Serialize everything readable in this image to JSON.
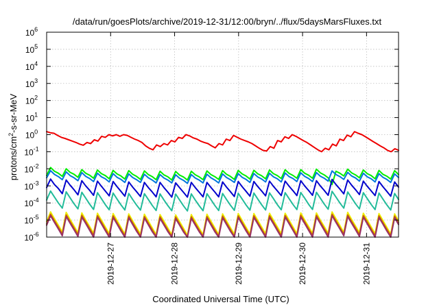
{
  "chart_data": {
    "type": "line",
    "title": "/data/run/goesPlots/archive/2019-12-31/12:00/bryn/../flux/5daysMarsFluxes.txt",
    "xlabel": "Coordinated Universal Time (UTC)",
    "ylabel": {
      "base": "protons/cm",
      "sup": "2",
      "rest": "-s-sr-MeV"
    },
    "x_ticks": [
      "2019-12-27",
      "2019-12-28",
      "2019-12-29",
      "2019-12-30",
      "2019-12-31"
    ],
    "y_ticks": [
      {
        "base": "10",
        "exp": "-6"
      },
      {
        "base": "10",
        "exp": "-5"
      },
      {
        "base": "10",
        "exp": "-4"
      },
      {
        "base": "10",
        "exp": "-3"
      },
      {
        "base": "10",
        "exp": "-2"
      },
      {
        "base": "10",
        "exp": "-1"
      },
      {
        "base": "10",
        "exp": "0"
      },
      {
        "base": "10",
        "exp": "1"
      },
      {
        "base": "10",
        "exp": "2"
      },
      {
        "base": "10",
        "exp": "3"
      },
      {
        "base": "10",
        "exp": "4"
      },
      {
        "base": "10",
        "exp": "5"
      },
      {
        "base": "10",
        "exp": "6"
      }
    ],
    "y_scale": "log",
    "ylim": [
      1e-06,
      1000000.0
    ],
    "xlim": [
      "2019-12-26 00:00",
      "2019-12-31 12:00"
    ],
    "grid": true,
    "legend": "none",
    "series": [
      {
        "color": "#ee0000",
        "period_hours": 4,
        "y": [
          1.5,
          1.3,
          1.2,
          0.9,
          0.7,
          0.6,
          0.5,
          0.42,
          0.35,
          0.28,
          0.24,
          0.35,
          0.3,
          0.5,
          0.42,
          0.8,
          0.7,
          1.0,
          0.85,
          1.0,
          0.8,
          1.0,
          0.9,
          0.7,
          0.55,
          0.45,
          0.35,
          0.22,
          0.16,
          0.13,
          0.25,
          0.2,
          0.3,
          0.25,
          0.45,
          0.38,
          0.7,
          0.6,
          1.0,
          0.85,
          0.65,
          0.55,
          0.42,
          0.35,
          0.3,
          0.22,
          0.17,
          0.3,
          0.25,
          0.55,
          0.45,
          0.9,
          0.7,
          0.55,
          0.45,
          0.38,
          0.3,
          0.22,
          0.16,
          0.12,
          0.11,
          0.2,
          0.16,
          0.45,
          0.38,
          0.75,
          0.6,
          1.0,
          0.8,
          0.6,
          0.45,
          0.35,
          0.25,
          0.18,
          0.13,
          0.1,
          0.16,
          0.13,
          0.28,
          0.22,
          0.55,
          0.45,
          0.95,
          0.75,
          1.5,
          1.2,
          1.0,
          0.75,
          0.55,
          0.4,
          0.3,
          0.22,
          0.17,
          0.12,
          0.1,
          0.15,
          0.12
        ]
      },
      {
        "color": "#00ee00",
        "period_hours": 4,
        "y": [
          0.004,
          0.012,
          0.0072,
          0.0055,
          0.0036,
          0.01,
          0.0062,
          0.0048,
          0.0032,
          0.009,
          0.0055,
          0.0042,
          0.0028,
          0.0085,
          0.0052,
          0.004,
          0.0026,
          0.008,
          0.005,
          0.0038,
          0.0025,
          0.0078,
          0.0048,
          0.0036,
          0.0024,
          0.0075,
          0.0046,
          0.0035,
          0.0023,
          0.0072,
          0.0044,
          0.0034,
          0.0022,
          0.007,
          0.0043,
          0.0033,
          0.0022,
          0.0072,
          0.0045,
          0.0034,
          0.0023,
          0.0075,
          0.0046,
          0.0035,
          0.0024,
          0.0078,
          0.0048,
          0.0036,
          0.0024,
          0.008,
          0.005,
          0.0038,
          0.0025,
          0.0082,
          0.0051,
          0.0039,
          0.0026,
          0.0085,
          0.0052,
          0.004,
          0.0027,
          0.0088,
          0.0054,
          0.0041,
          0.0028,
          0.009,
          0.0055,
          0.0042,
          0.0028,
          0.0095,
          0.0058,
          0.0044,
          0.003,
          0.0012,
          0.0072,
          0.0055,
          0.0038,
          0.0095,
          0.0058,
          0.0044,
          0.003,
          0.0085,
          0.0052,
          0.004,
          0.0026,
          0.008,
          0.0048,
          0.0037,
          0.0025,
          0.0078,
          0.0046
        ]
      },
      {
        "color": "#0077dd",
        "period_hours": 4,
        "y": [
          0.003,
          0.0078,
          0.0047,
          0.0035,
          0.0023,
          0.0066,
          0.004,
          0.003,
          0.002,
          0.006,
          0.0036,
          0.0027,
          0.0018,
          0.0055,
          0.0034,
          0.0026,
          0.0017,
          0.0052,
          0.0032,
          0.0024,
          0.0016,
          0.005,
          0.0031,
          0.0023,
          0.0016,
          0.0048,
          0.003,
          0.0022,
          0.0015,
          0.0046,
          0.0029,
          0.0022,
          0.0015,
          0.0045,
          0.0028,
          0.0021,
          0.0014,
          0.0046,
          0.0029,
          0.0022,
          0.0015,
          0.0048,
          0.003,
          0.0022,
          0.0015,
          0.005,
          0.0031,
          0.0023,
          0.0016,
          0.0052,
          0.0032,
          0.0024,
          0.0016,
          0.0053,
          0.0033,
          0.0025,
          0.0017,
          0.0055,
          0.0034,
          0.0026,
          0.0017,
          0.0057,
          0.0035,
          0.0027,
          0.0018,
          0.0058,
          0.0036,
          0.0027,
          0.0018,
          0.006,
          0.0037,
          0.0028,
          0.0019,
          0.0075,
          0.0046,
          0.0035,
          0.0024,
          0.0062,
          0.0038,
          0.0029,
          0.0019,
          0.0055,
          0.0034,
          0.0026,
          0.0017,
          0.0052,
          0.0032,
          0.0024,
          0.0016,
          0.005,
          0.0031
        ]
      },
      {
        "color": "#0000cc",
        "period_hours": 4,
        "y": [
          0.0008,
          0.0025,
          0.0012,
          0.0007,
          0.00035,
          0.0022,
          0.0011,
          0.0006,
          0.0003,
          0.002,
          0.001,
          0.00055,
          0.00028,
          0.0019,
          0.00095,
          0.0005,
          0.00026,
          0.0018,
          0.0009,
          0.00048,
          0.00025,
          0.0017,
          0.00085,
          0.00046,
          0.00024,
          0.0016,
          0.0008,
          0.00044,
          0.00023,
          0.0016,
          0.0008,
          0.00043,
          0.00022,
          0.0015,
          0.00078,
          0.00042,
          0.00022,
          0.0016,
          0.0008,
          0.00043,
          0.00023,
          0.0016,
          0.00082,
          0.00044,
          0.00023,
          0.0017,
          0.00085,
          0.00046,
          0.00024,
          0.0018,
          0.0009,
          0.00048,
          0.00025,
          0.0018,
          0.00092,
          0.0005,
          0.00026,
          0.0019,
          0.00095,
          0.00051,
          0.00027,
          0.0019,
          0.00097,
          0.00052,
          0.00027,
          0.002,
          0.001,
          0.00054,
          0.00028,
          0.002,
          0.001,
          0.00054,
          0.00028,
          0.0024,
          0.0012,
          0.00065,
          0.00034,
          0.0022,
          0.0011,
          0.0006,
          0.00031,
          0.0019,
          0.00095,
          0.00051,
          0.00027,
          0.0018,
          0.0009,
          0.00048,
          0.00025,
          0.0017,
          0.00085
        ]
      },
      {
        "color": "#22bb99",
        "period_hours": 4,
        "y": [
          0.00015,
          0.0005,
          0.00022,
          0.0001,
          5e-05,
          0.00045,
          0.0002,
          9e-05,
          4.5e-05,
          0.00042,
          0.00019,
          8.5e-05,
          4.2e-05,
          0.0004,
          0.00018,
          8e-05,
          4e-05,
          0.00038,
          0.00017,
          7.8e-05,
          3.9e-05,
          0.00036,
          0.00016,
          7.5e-05,
          3.8e-05,
          0.00035,
          0.00016,
          7.2e-05,
          3.6e-05,
          0.00034,
          0.00015,
          7e-05,
          3.5e-05,
          0.00033,
          0.00015,
          6.8e-05,
          3.4e-05,
          0.00034,
          0.00015,
          7e-05,
          3.5e-05,
          0.00035,
          0.00016,
          7.2e-05,
          3.6e-05,
          0.00036,
          0.00016,
          7.4e-05,
          3.7e-05,
          0.00037,
          0.00017,
          7.6e-05,
          3.8e-05,
          0.00038,
          0.00017,
          7.8e-05,
          3.9e-05,
          0.00039,
          0.00018,
          8e-05,
          4e-05,
          0.0004,
          0.00018,
          8.2e-05,
          4.1e-05,
          0.00041,
          0.00019,
          8.4e-05,
          4.2e-05,
          0.00042,
          0.00019,
          8.6e-05,
          4.3e-05,
          0.00048,
          0.00022,
          0.0001,
          5e-05,
          0.00044,
          0.0002,
          9e-05,
          4.5e-05,
          0.0004,
          0.00018,
          8.2e-05,
          4.1e-05,
          0.00038,
          0.00017,
          7.8e-05,
          3.9e-05,
          0.00036,
          0.00016
        ]
      },
      {
        "color": "#eeee00",
        "period_hours": 4,
        "y": [
          8e-06,
          3e-05,
          1.2e-05,
          5e-06,
          2e-06,
          2.8e-05,
          1.1e-05,
          4.5e-06,
          1.8e-06,
          2.6e-05,
          1e-05,
          4.2e-06,
          1.7e-06,
          2.5e-05,
          1e-05,
          4e-06,
          1.6e-06,
          2.4e-05,
          9.5e-06,
          3.8e-06,
          1.5e-06,
          2.3e-05,
          9e-06,
          3.6e-06,
          1.5e-06,
          2.2e-05,
          8.8e-06,
          3.5e-06,
          1.4e-06,
          2.1e-05,
          8.5e-06,
          3.4e-06,
          1.4e-06,
          2e-05,
          8.2e-06,
          3.3e-06,
          1.3e-06,
          2.1e-05,
          8.4e-06,
          3.4e-06,
          1.4e-06,
          2.2e-05,
          8.8e-06,
          3.5e-06,
          1.4e-06,
          2.3e-05,
          9e-06,
          3.6e-06,
          1.5e-06,
          2.4e-05,
          9.5e-06,
          3.8e-06,
          1.5e-06,
          2.4e-05,
          9.6e-06,
          3.9e-06,
          1.6e-06,
          2.5e-05,
          1e-05,
          4e-06,
          1.6e-06,
          2.5e-05,
          1e-05,
          4e-06,
          1.6e-06,
          2.6e-05,
          1e-05,
          4.2e-06,
          1.7e-06,
          2.6e-05,
          1e-05,
          4.2e-06,
          1.7e-06,
          3e-05,
          1.2e-05,
          4.8e-06,
          1.9e-06,
          2.8e-05,
          1.1e-05,
          4.5e-06,
          1.8e-06,
          2.5e-05,
          1e-05,
          4e-06,
          1.6e-06,
          2.4e-05,
          9.5e-06,
          3.8e-06,
          1.5e-06,
          2.3e-05,
          9e-06
        ]
      },
      {
        "color": "#cc6600",
        "period_hours": 4,
        "y": [
          6e-06,
          2.2e-05,
          9e-06,
          3.8e-06,
          1.5e-06,
          2e-05,
          8.2e-06,
          3.4e-06,
          1.4e-06,
          1.9e-05,
          7.8e-06,
          3.2e-06,
          1.3e-06,
          1.8e-05,
          7.5e-06,
          3e-06,
          1.2e-06,
          1.75e-05,
          7e-06,
          2.9e-06,
          1.2e-06,
          1.7e-05,
          6.8e-06,
          2.8e-06,
          1.1e-06,
          1.6e-05,
          6.5e-06,
          2.7e-06,
          1.1e-06,
          1.55e-05,
          6.3e-06,
          2.6e-06,
          1.1e-06,
          1.5e-05,
          6e-06,
          2.5e-06,
          1e-06,
          1.55e-05,
          6.3e-06,
          2.6e-06,
          1.1e-06,
          1.6e-05,
          6.5e-06,
          2.7e-06,
          1.1e-06,
          1.7e-05,
          6.8e-06,
          2.8e-06,
          1.1e-06,
          1.75e-05,
          7e-06,
          2.9e-06,
          1.2e-06,
          1.78e-05,
          7.1e-06,
          2.9e-06,
          1.2e-06,
          1.8e-05,
          7.3e-06,
          3e-06,
          1.2e-06,
          1.85e-05,
          7.5e-06,
          3e-06,
          1.2e-06,
          1.9e-05,
          7.7e-06,
          3.1e-06,
          1.3e-06,
          1.9e-05,
          7.7e-06,
          3.1e-06,
          1.3e-06,
          2.2e-05,
          8.8e-06,
          3.6e-06,
          1.5e-06,
          2e-05,
          8.2e-06,
          3.4e-06,
          1.4e-06,
          1.8e-05,
          7.5e-06,
          3e-06,
          1.2e-06,
          1.75e-05,
          7e-06,
          2.9e-06,
          1.2e-06,
          1.7e-05,
          6.8e-06
        ]
      },
      {
        "color": "#993366",
        "period_hours": 4,
        "y": [
          5e-06,
          1.8e-05,
          7.2e-06,
          3e-06,
          1.2e-06,
          1.6e-05,
          6.5e-06,
          2.7e-06,
          1.1e-06,
          1.5e-05,
          6.2e-06,
          2.5e-06,
          1e-06,
          1.45e-05,
          6e-06,
          2.4e-06,
          1e-06,
          1.4e-05,
          5.8e-06,
          2.3e-06,
          1e-06,
          1.35e-05,
          5.5e-06,
          2.2e-06,
          1e-06,
          1.3e-05,
          5.3e-06,
          2.1e-06,
          1e-06,
          1.25e-05,
          5.1e-06,
          2.1e-06,
          1e-06,
          1.2e-05,
          5e-06,
          2e-06,
          1e-06,
          1.25e-05,
          5.1e-06,
          2.1e-06,
          1e-06,
          1.3e-05,
          5.3e-06,
          2.1e-06,
          1e-06,
          1.35e-05,
          5.5e-06,
          2.2e-06,
          1e-06,
          1.4e-05,
          5.8e-06,
          2.3e-06,
          1e-06,
          1.42e-05,
          5.9e-06,
          2.4e-06,
          1e-06,
          1.45e-05,
          6e-06,
          2.4e-06,
          1e-06,
          1.48e-05,
          6.1e-06,
          2.5e-06,
          1e-06,
          1.5e-05,
          6.2e-06,
          2.5e-06,
          1e-06,
          1.5e-05,
          6.2e-06,
          2.5e-06,
          1e-06,
          1.8e-05,
          7.2e-06,
          3e-06,
          1.2e-06,
          1.6e-05,
          6.5e-06,
          2.7e-06,
          1.1e-06,
          1.45e-05,
          6e-06,
          2.4e-06,
          1e-06,
          1.4e-05,
          5.8e-06,
          2.3e-06,
          1e-06,
          1.35e-05,
          5.5e-06
        ]
      }
    ]
  }
}
